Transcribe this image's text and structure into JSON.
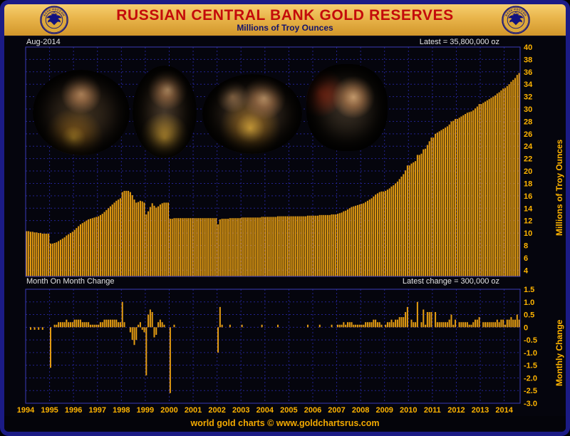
{
  "header": {
    "title": "RUSSIAN CENTRAL BANK GOLD RESERVES",
    "subtitle": "Millions of Troy Ounces",
    "emblem_label": "БАНК РОССИИ"
  },
  "colors": {
    "bar": "#E49C12",
    "grid": "#232390",
    "panel_frame": "#3A3AB8",
    "tick_text": "#FFB400",
    "header_gold": "#E8B44A",
    "title_red": "#C40B0B",
    "subtitle_navy": "#13136B",
    "background": "#05050D"
  },
  "photos": [
    {
      "alt": "photo inset: officials inspecting gold bars"
    },
    {
      "alt": "photo inset: official examining a gold bar"
    },
    {
      "alt": "photo inset: officials with gold bar in vault"
    },
    {
      "alt": "photo inset: official at press event"
    }
  ],
  "chart_data": [
    {
      "type": "bar",
      "title": "Russian Central Bank Gold Reserves",
      "ylabel": "Millions of Troy Ounces",
      "annotation_left": "Aug-2014",
      "annotation_right": "Latest = 35,800,000 oz",
      "x_start": "1994-01",
      "x_end": "2014-08",
      "x_tick_labels": [
        "1994",
        "1995",
        "1996",
        "1997",
        "1998",
        "1999",
        "2000",
        "2001",
        "2002",
        "2003",
        "2004",
        "2005",
        "2006",
        "2007",
        "2008",
        "2009",
        "2010",
        "2011",
        "2012",
        "2013",
        "2014"
      ],
      "ylim": [
        3,
        40
      ],
      "yticks": [
        4,
        6,
        8,
        10,
        12,
        14,
        16,
        18,
        20,
        22,
        24,
        26,
        28,
        30,
        32,
        34,
        36,
        38,
        40
      ],
      "grid": true,
      "values": [
        10.3,
        10.3,
        10.2,
        10.2,
        10.1,
        10.1,
        10.0,
        10.0,
        9.9,
        9.9,
        9.9,
        9.9,
        8.3,
        8.3,
        8.4,
        8.5,
        8.7,
        8.9,
        9.1,
        9.3,
        9.6,
        9.8,
        10.0,
        10.2,
        10.5,
        10.8,
        11.1,
        11.4,
        11.6,
        11.8,
        12.0,
        12.2,
        12.3,
        12.4,
        12.5,
        12.6,
        12.7,
        12.9,
        13.1,
        13.4,
        13.7,
        14.0,
        14.3,
        14.6,
        14.9,
        15.2,
        15.4,
        15.6,
        16.6,
        16.8,
        16.8,
        16.8,
        16.6,
        16.1,
        15.4,
        14.9,
        15.0,
        15.2,
        15.1,
        14.9,
        13.0,
        13.5,
        14.2,
        14.8,
        14.4,
        14.1,
        14.3,
        14.6,
        14.8,
        14.9,
        14.9,
        14.9,
        12.3,
        12.3,
        12.4,
        12.4,
        12.4,
        12.4,
        12.4,
        12.4,
        12.4,
        12.4,
        12.4,
        12.4,
        12.4,
        12.4,
        12.4,
        12.4,
        12.4,
        12.4,
        12.4,
        12.4,
        12.4,
        12.4,
        12.4,
        12.4,
        11.4,
        12.2,
        12.3,
        12.3,
        12.3,
        12.3,
        12.4,
        12.4,
        12.4,
        12.4,
        12.4,
        12.4,
        12.5,
        12.5,
        12.5,
        12.5,
        12.5,
        12.5,
        12.5,
        12.5,
        12.5,
        12.5,
        12.6,
        12.6,
        12.6,
        12.6,
        12.6,
        12.6,
        12.6,
        12.6,
        12.7,
        12.7,
        12.7,
        12.7,
        12.7,
        12.7,
        12.7,
        12.7,
        12.7,
        12.7,
        12.7,
        12.7,
        12.7,
        12.7,
        12.7,
        12.8,
        12.8,
        12.8,
        12.8,
        12.8,
        12.8,
        12.9,
        12.9,
        12.9,
        12.9,
        12.9,
        12.9,
        13.0,
        13.0,
        13.0,
        13.1,
        13.2,
        13.3,
        13.5,
        13.6,
        13.8,
        14.0,
        14.2,
        14.3,
        14.4,
        14.5,
        14.6,
        14.7,
        14.8,
        15.0,
        15.2,
        15.4,
        15.6,
        15.9,
        16.2,
        16.4,
        16.6,
        16.7,
        16.7,
        16.8,
        17.0,
        17.2,
        17.5,
        17.7,
        18.0,
        18.3,
        18.7,
        19.1,
        19.5,
        20.1,
        20.9,
        20.9,
        21.2,
        21.4,
        21.6,
        22.6,
        22.6,
        22.8,
        23.5,
        23.6,
        24.2,
        24.8,
        25.4,
        25.4,
        26.0,
        26.2,
        26.4,
        26.6,
        26.8,
        27.0,
        27.2,
        27.5,
        28.0,
        28.1,
        28.4,
        28.4,
        28.6,
        28.8,
        29.0,
        29.2,
        29.4,
        29.5,
        29.6,
        29.8,
        30.1,
        30.4,
        30.8,
        30.8,
        31.0,
        31.2,
        31.4,
        31.6,
        31.8,
        32.0,
        32.2,
        32.5,
        32.7,
        33.0,
        33.3,
        33.4,
        33.7,
        34.0,
        34.4,
        34.7,
        35.0,
        35.5,
        35.8
      ]
    },
    {
      "type": "bar",
      "title": "Month On Month Change",
      "ylabel": "Monthly Change",
      "annotation_right": "Latest change = 300,000 oz",
      "ylim": [
        -3.0,
        1.5
      ],
      "yticks": [
        1.5,
        1.0,
        0.5,
        0,
        -0.5,
        -1.0,
        -1.5,
        -2.0,
        -2.5,
        -3.0
      ],
      "grid": true,
      "series_note": "values are month-over-month first differences of the reserves series above"
    }
  ],
  "footer": {
    "text": "world gold charts © www.goldchartsrus.com"
  }
}
